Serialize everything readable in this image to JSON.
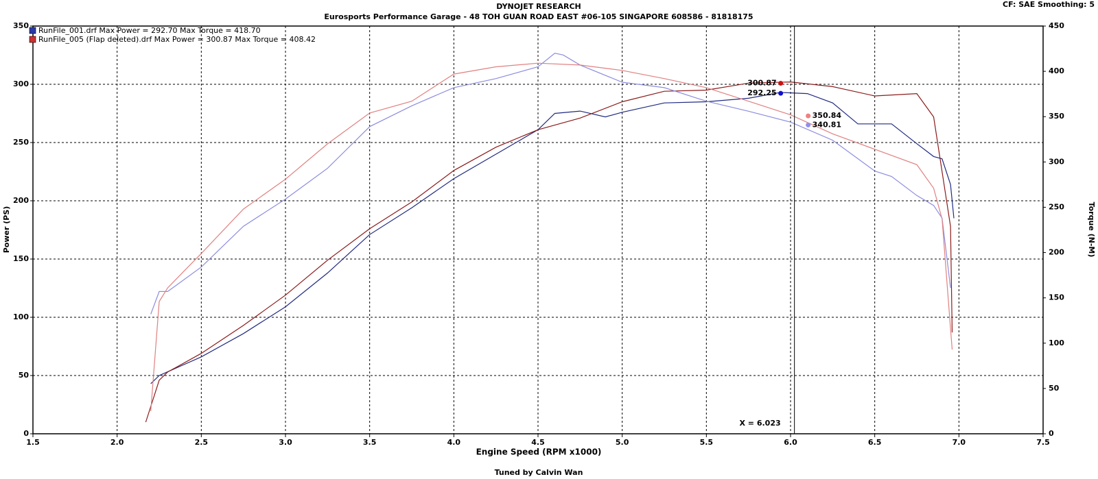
{
  "chart_data": {
    "type": "line",
    "title": "DYNOJET RESEARCH",
    "subtitle": "Eurosports Performance Garage - 48 TOH GUAN ROAD EAST #06-105 SINGAPORE 608586 - 81818175",
    "corner_note": "CF: SAE  Smoothing: 5",
    "footer": "Tuned by Calvin Wan",
    "x_label": "Engine Speed (RPM x1000)",
    "y_label": "Power (PS)",
    "y2_label": "Torque (N-M)",
    "legend": [
      {
        "label": "RunFile_001.drf Max Power = 292.70    Max Torque = 418.70",
        "color": "#2b3aa8"
      },
      {
        "label": "RunFile_005 (Flap deleted).drf Max Power = 300.87    Max Torque = 408.42",
        "color": "#d03030"
      }
    ],
    "xlim": [
      1.5,
      7.5
    ],
    "xticks": [
      {
        "value": 1.5,
        "label": "1.5"
      },
      {
        "value": 2,
        "label": "2.0"
      },
      {
        "value": 2.5,
        "label": "2.5"
      },
      {
        "value": 3,
        "label": "3.0"
      },
      {
        "value": 3.5,
        "label": "3.5"
      },
      {
        "value": 4,
        "label": "4.0"
      },
      {
        "value": 4.5,
        "label": "4.5"
      },
      {
        "value": 5,
        "label": "5.0"
      },
      {
        "value": 5.5,
        "label": "5.5"
      },
      {
        "value": 6,
        "label": "6.0"
      },
      {
        "value": 6.5,
        "label": "6.5"
      },
      {
        "value": 7,
        "label": "7.0"
      },
      {
        "value": 7.5,
        "label": "7.5"
      }
    ],
    "ylim": [
      0,
      350
    ],
    "yticks": [
      0,
      50,
      100,
      150,
      200,
      250,
      300,
      350
    ],
    "y2lim": [
      0,
      450
    ],
    "y2ticks": [
      0,
      50,
      100,
      150,
      200,
      250,
      300,
      350,
      400,
      450
    ],
    "grid": true,
    "series": [
      {
        "color": "#1f2a80",
        "axis": "y",
        "x": [
          2.2,
          2.25,
          2.5,
          2.75,
          3.0,
          3.25,
          3.5,
          3.75,
          4.0,
          4.25,
          4.5,
          4.6,
          4.75,
          4.9,
          5.0,
          5.25,
          5.5,
          5.75,
          5.94,
          6.1,
          6.25,
          6.4,
          6.6,
          6.75,
          6.85,
          6.9,
          6.95,
          6.97
        ],
        "values": [
          43,
          50,
          66,
          86,
          109,
          138,
          171,
          194,
          219,
          240,
          261,
          275,
          277,
          272,
          276,
          284,
          285,
          288,
          293,
          292,
          284,
          266,
          266,
          249,
          238,
          236,
          214,
          185
        ]
      },
      {
        "color": "#8b1a1a",
        "axis": "y",
        "x": [
          2.17,
          2.25,
          2.3,
          2.5,
          2.75,
          3.0,
          3.25,
          3.5,
          3.75,
          4.0,
          4.25,
          4.5,
          4.75,
          5.0,
          5.25,
          5.5,
          5.75,
          6.0,
          6.25,
          6.5,
          6.75,
          6.85,
          6.9,
          6.95,
          6.96
        ],
        "values": [
          10,
          46,
          53,
          69,
          93,
          119,
          149,
          176,
          199,
          226,
          246,
          261,
          271,
          285,
          294,
          295,
          301,
          302,
          298,
          290,
          292,
          272,
          225,
          178,
          87
        ]
      },
      {
        "color": "#8c8ce0",
        "axis": "y2",
        "x": [
          2.2,
          2.25,
          2.3,
          2.5,
          2.75,
          3.0,
          3.25,
          3.5,
          3.75,
          4.0,
          4.25,
          4.5,
          4.6,
          4.65,
          4.75,
          5.0,
          5.25,
          5.5,
          5.75,
          6.0,
          6.25,
          6.5,
          6.6,
          6.75,
          6.85,
          6.9,
          6.95
        ],
        "values": [
          132,
          157,
          157,
          184,
          229,
          259,
          293,
          339,
          362,
          382,
          392,
          405,
          420,
          418,
          407,
          388,
          382,
          367,
          356,
          344,
          324,
          290,
          284,
          263,
          252,
          238,
          161
        ]
      },
      {
        "color": "#e08080",
        "axis": "y2",
        "x": [
          2.2,
          2.25,
          2.3,
          2.5,
          2.75,
          3.0,
          3.25,
          3.5,
          3.75,
          4.0,
          4.25,
          4.5,
          4.75,
          5.0,
          5.25,
          5.5,
          5.75,
          6.0,
          6.25,
          6.5,
          6.75,
          6.85,
          6.9,
          6.95,
          6.96
        ],
        "values": [
          25,
          146,
          161,
          199,
          248,
          281,
          320,
          354,
          367,
          397,
          405,
          409,
          407,
          401,
          392,
          382,
          367,
          352,
          331,
          314,
          297,
          271,
          237,
          116,
          93
        ]
      }
    ],
    "cursor": {
      "x": 6.023,
      "label": "X = 6.023",
      "readouts": [
        {
          "value": 300.87,
          "axis": "y",
          "color": "#d01010"
        },
        {
          "value": 292.25,
          "axis": "y",
          "color": "#1010d0"
        },
        {
          "value": 350.84,
          "axis": "y2",
          "color": "#f08080"
        },
        {
          "value": 340.81,
          "axis": "y2",
          "color": "#9090f0"
        }
      ]
    }
  }
}
